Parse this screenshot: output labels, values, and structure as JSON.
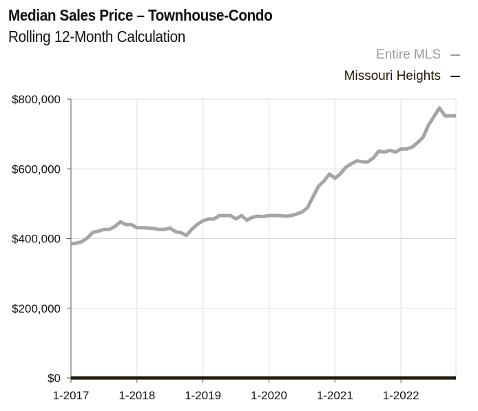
{
  "chart_data": {
    "type": "line",
    "title": "Median Sales Price – Townhouse-Condo",
    "subtitle": "Rolling 12-Month Calculation",
    "xlabel": "",
    "ylabel": "",
    "ylim": [
      0,
      800000
    ],
    "yticks": [
      0,
      200000,
      400000,
      600000,
      800000
    ],
    "ytick_labels": [
      "$0",
      "$200,000",
      "$400,000",
      "$600,000",
      "$800,000"
    ],
    "xtick_labels": [
      "1-2017",
      "1-2018",
      "1-2019",
      "1-2020",
      "1-2021",
      "1-2022"
    ],
    "xtick_index": [
      0,
      12,
      24,
      36,
      48,
      60
    ],
    "x_count": 71,
    "grid": true,
    "legend_position": "top-right",
    "series": [
      {
        "name": "Entire MLS",
        "color": "#a5a5a5",
        "values": [
          385000,
          387000,
          391000,
          402000,
          418000,
          421000,
          426000,
          426000,
          435000,
          448000,
          440000,
          440000,
          431000,
          431000,
          430000,
          429000,
          426000,
          426000,
          430000,
          420000,
          417000,
          409000,
          427000,
          441000,
          451000,
          456000,
          456000,
          466000,
          466000,
          466000,
          456000,
          466000,
          453000,
          461000,
          464000,
          463000,
          466000,
          466000,
          466000,
          464000,
          466000,
          470000,
          476000,
          488000,
          520000,
          550000,
          565000,
          585000,
          573000,
          586000,
          605000,
          615000,
          623000,
          620000,
          620000,
          632000,
          651000,
          648000,
          653000,
          648000,
          657000,
          657000,
          662000,
          675000,
          690000,
          725000,
          750000,
          775000,
          752000,
          752000,
          752000
        ]
      },
      {
        "name": "Missouri Heights",
        "color": "#231a0a",
        "values": [
          0,
          0,
          0,
          0,
          0,
          0,
          0,
          0,
          0,
          0,
          0,
          0,
          0,
          0,
          0,
          0,
          0,
          0,
          0,
          0,
          0,
          0,
          0,
          0,
          0,
          0,
          0,
          0,
          0,
          0,
          0,
          0,
          0,
          0,
          0,
          0,
          0,
          0,
          0,
          0,
          0,
          0,
          0,
          0,
          0,
          0,
          0,
          0,
          0,
          0,
          0,
          0,
          0,
          0,
          0,
          0,
          0,
          0,
          0,
          0,
          0,
          0,
          0,
          0,
          0,
          0,
          0,
          0,
          0,
          0,
          0
        ]
      }
    ]
  }
}
